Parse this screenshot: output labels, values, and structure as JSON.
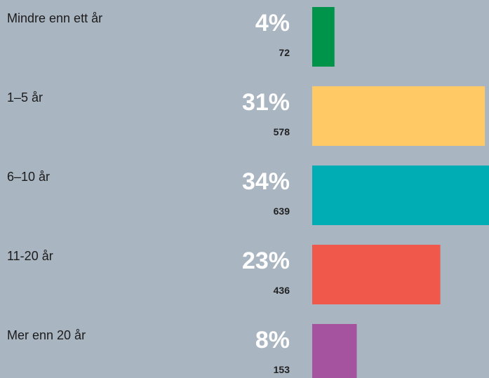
{
  "chart_data": {
    "type": "bar",
    "categories": [
      "Mindre enn ett år",
      "1–5 år",
      "6–10 år",
      "11-20 år",
      "Mer enn 20 år"
    ],
    "values": [
      4,
      31,
      34,
      23,
      8
    ],
    "value_labels": [
      "4%",
      "31%",
      "34%",
      "23%",
      "8%"
    ],
    "counts": [
      72,
      578,
      639,
      436,
      153
    ],
    "colors": [
      "#00934a",
      "#ffc966",
      "#00adb5",
      "#f0584c",
      "#a5539e"
    ]
  }
}
